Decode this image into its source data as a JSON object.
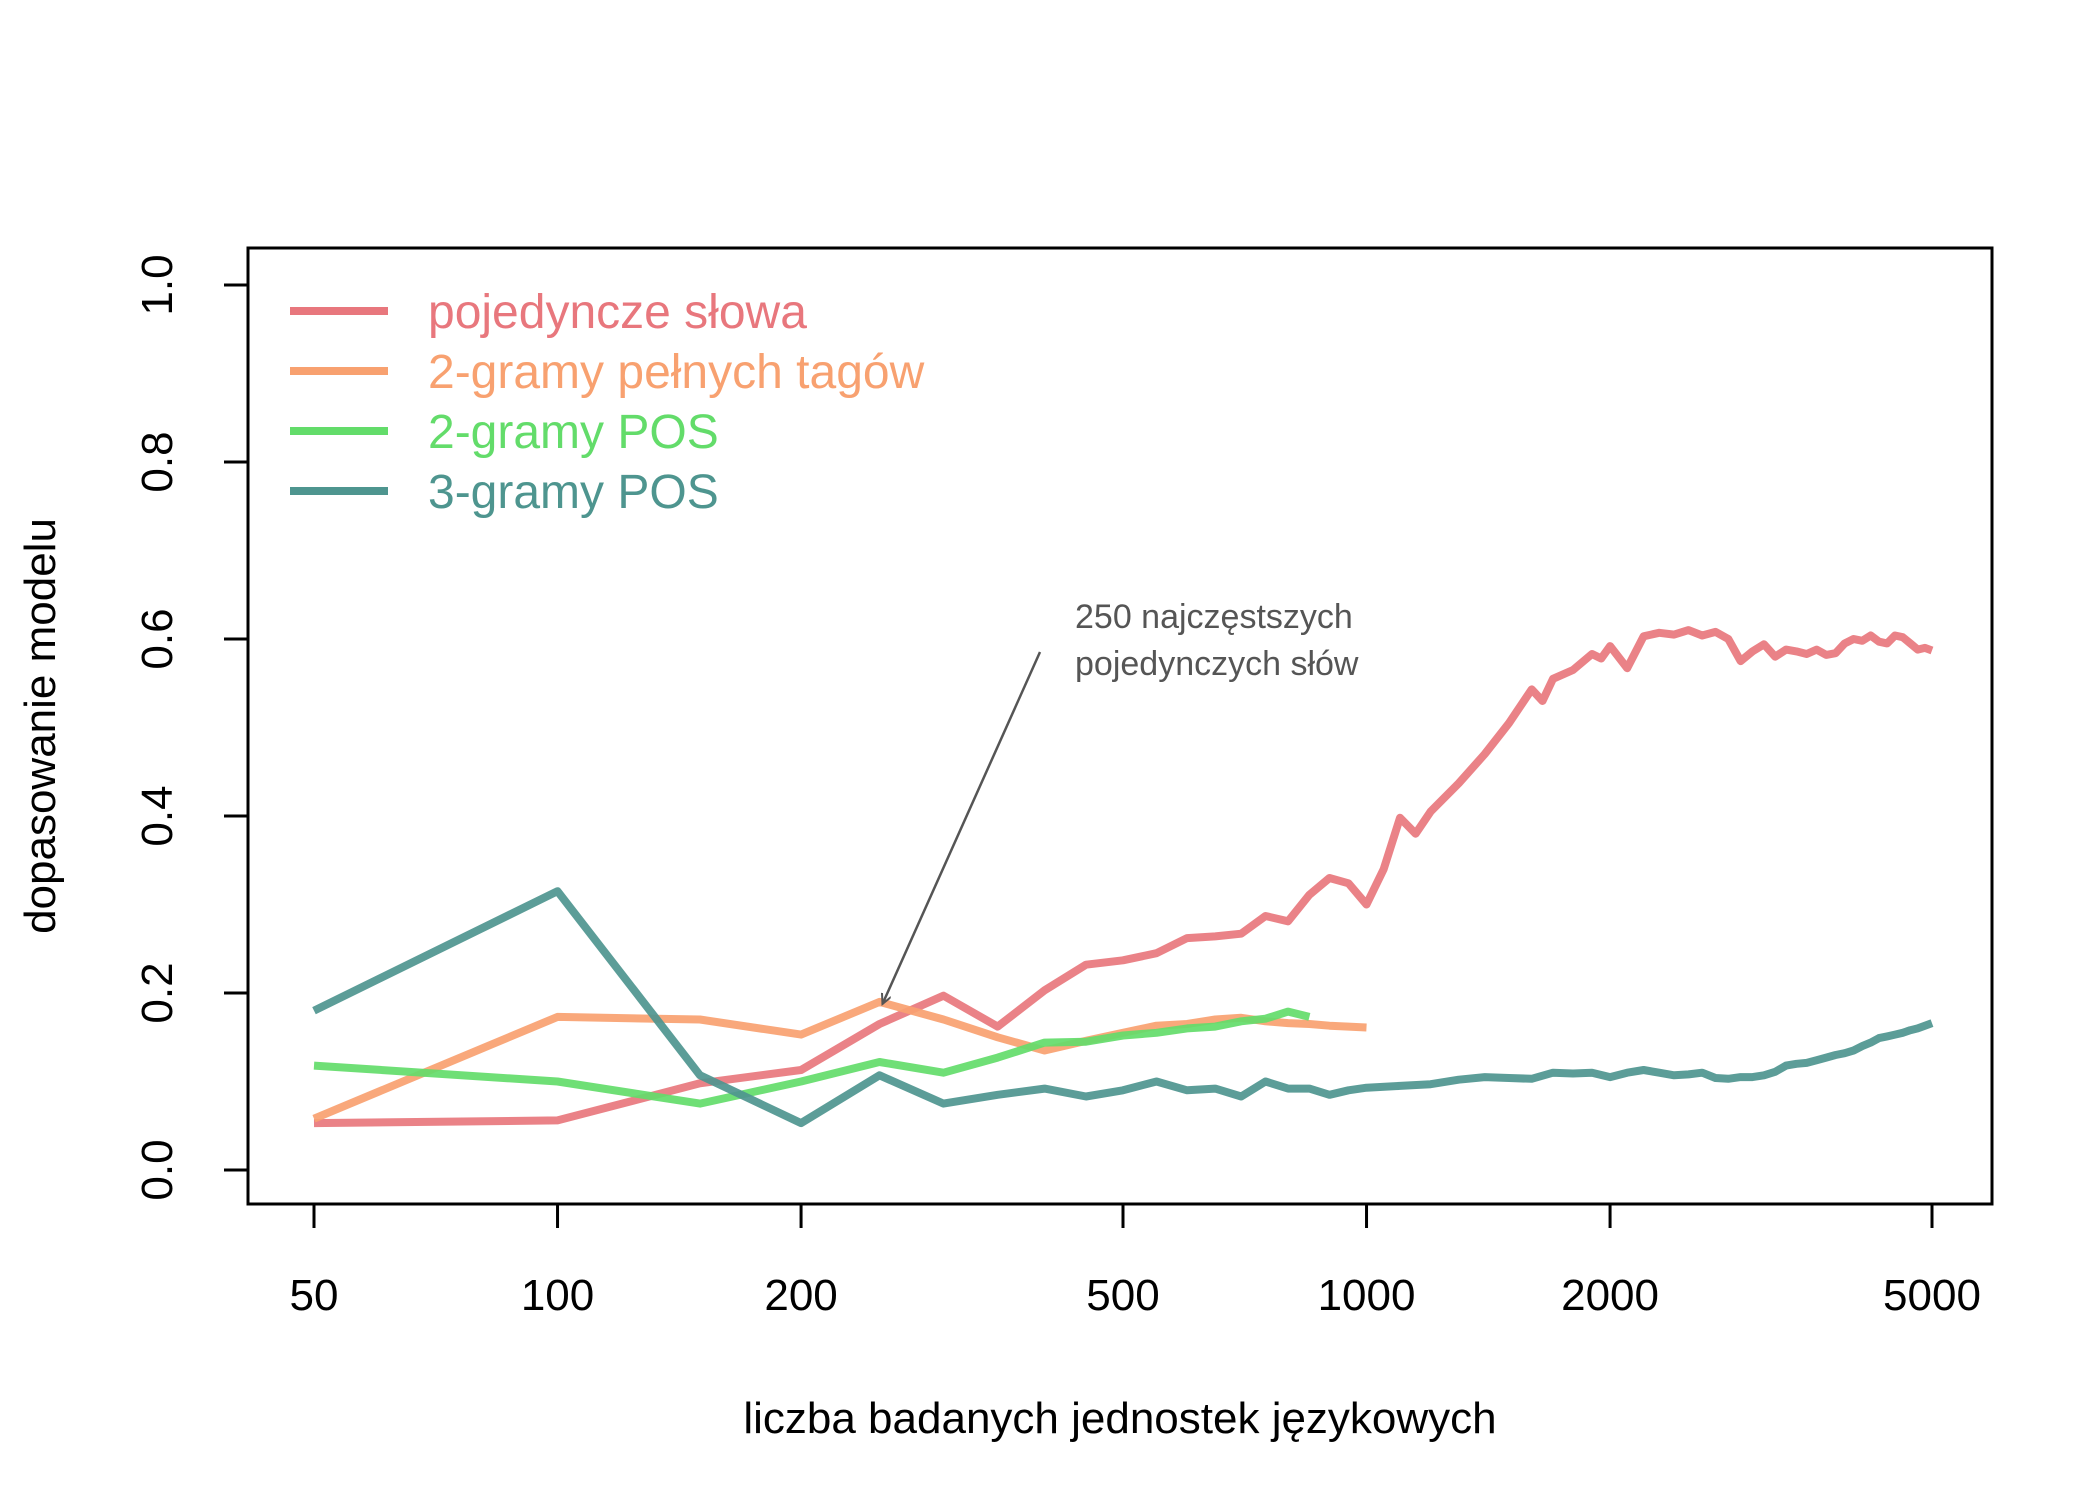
{
  "chart_data": {
    "type": "line",
    "title": "",
    "xlabel": "liczba badanych jednostek językowych",
    "ylabel": "dopasowanie modelu",
    "x_scale": "log",
    "xlim": [
      50,
      5000
    ],
    "ylim": [
      0,
      1
    ],
    "x_ticks": [
      50,
      100,
      200,
      500,
      1000,
      2000,
      5000
    ],
    "x_tick_labels": [
      "50",
      "100",
      "200",
      "500",
      "1000",
      "2000",
      "5000"
    ],
    "y_ticks": [
      0,
      0.2,
      0.4,
      0.6,
      0.8,
      1
    ],
    "y_tick_labels": [
      "0.0",
      "0.2",
      "0.4",
      "0.6",
      "0.8",
      "1.0"
    ],
    "grid": false,
    "legend_position": "top-left",
    "series": [
      {
        "name": "pojedyncze słowa",
        "color": "#E8777D",
        "x": [
          50,
          100,
          150,
          200,
          250,
          300,
          350,
          400,
          450,
          500,
          550,
          600,
          650,
          700,
          750,
          800,
          850,
          900,
          950,
          1000,
          1050,
          1100,
          1150,
          1200,
          1300,
          1400,
          1500,
          1600,
          1650,
          1700,
          1800,
          1900,
          1950,
          2000,
          2100,
          2200,
          2300,
          2400,
          2500,
          2600,
          2700,
          2800,
          2900,
          3000,
          3100,
          3200,
          3300,
          3400,
          3500,
          3600,
          3700,
          3800,
          3900,
          4000,
          4100,
          4200,
          4300,
          4400,
          4500,
          4600,
          4700,
          4800,
          4900,
          5000
        ],
        "values": [
          0.053,
          0.056,
          0.098,
          0.113,
          0.165,
          0.197,
          0.162,
          0.203,
          0.232,
          0.237,
          0.245,
          0.262,
          0.264,
          0.267,
          0.287,
          0.281,
          0.311,
          0.33,
          0.324,
          0.3,
          0.34,
          0.398,
          0.38,
          0.405,
          0.437,
          0.47,
          0.505,
          0.543,
          0.53,
          0.555,
          0.565,
          0.583,
          0.578,
          0.592,
          0.567,
          0.603,
          0.607,
          0.605,
          0.61,
          0.604,
          0.608,
          0.6,
          0.575,
          0.586,
          0.594,
          0.58,
          0.588,
          0.586,
          0.583,
          0.588,
          0.582,
          0.584,
          0.595,
          0.6,
          0.598,
          0.604,
          0.597,
          0.595,
          0.604,
          0.602,
          0.595,
          0.588,
          0.59,
          0.587
        ]
      },
      {
        "name": "2-gramy pełnych tagów",
        "color": "#F8A170",
        "x": [
          50,
          100,
          150,
          200,
          250,
          300,
          350,
          400,
          450,
          500,
          550,
          600,
          650,
          700,
          750,
          800,
          850,
          900,
          950,
          1000
        ],
        "values": [
          0.058,
          0.173,
          0.17,
          0.153,
          0.19,
          0.17,
          0.15,
          0.135,
          0.146,
          0.155,
          0.163,
          0.165,
          0.17,
          0.172,
          0.168,
          0.166,
          0.165,
          0.163,
          0.162,
          0.161
        ]
      },
      {
        "name": "2-gramy POS",
        "color": "#63DC6A",
        "x": [
          50,
          100,
          150,
          200,
          250,
          300,
          350,
          400,
          450,
          500,
          550,
          600,
          650,
          700,
          750,
          800,
          850
        ],
        "values": [
          0.118,
          0.1,
          0.075,
          0.1,
          0.122,
          0.11,
          0.127,
          0.144,
          0.145,
          0.152,
          0.155,
          0.16,
          0.162,
          0.168,
          0.171,
          0.179,
          0.173
        ]
      },
      {
        "name": "3-gramy POS",
        "color": "#4E958F",
        "x": [
          50,
          100,
          150,
          200,
          250,
          300,
          350,
          400,
          450,
          500,
          550,
          600,
          650,
          700,
          750,
          800,
          850,
          900,
          950,
          1000,
          1100,
          1200,
          1300,
          1400,
          1500,
          1600,
          1700,
          1800,
          1900,
          2000,
          2100,
          2200,
          2300,
          2400,
          2500,
          2600,
          2700,
          2800,
          2900,
          3000,
          3100,
          3200,
          3300,
          3400,
          3500,
          3600,
          3700,
          3800,
          3900,
          4000,
          4100,
          4200,
          4300,
          4400,
          4500,
          4600,
          4700,
          4800,
          4900,
          5000
        ],
        "values": [
          0.18,
          0.315,
          0.107,
          0.053,
          0.107,
          0.075,
          0.085,
          0.092,
          0.083,
          0.09,
          0.1,
          0.09,
          0.092,
          0.083,
          0.1,
          0.092,
          0.092,
          0.085,
          0.09,
          0.093,
          0.095,
          0.097,
          0.102,
          0.105,
          0.104,
          0.103,
          0.11,
          0.109,
          0.11,
          0.105,
          0.11,
          0.113,
          0.11,
          0.107,
          0.108,
          0.11,
          0.104,
          0.103,
          0.105,
          0.105,
          0.107,
          0.111,
          0.118,
          0.12,
          0.121,
          0.124,
          0.127,
          0.13,
          0.132,
          0.135,
          0.14,
          0.144,
          0.149,
          0.151,
          0.153,
          0.155,
          0.158,
          0.16,
          0.163,
          0.166
        ]
      }
    ],
    "annotation": {
      "lines": [
        "250 najczęstszych",
        "pojedynczych słów"
      ],
      "color": "#555555",
      "arrow_to": {
        "x": 250,
        "y": 0.165
      }
    }
  }
}
